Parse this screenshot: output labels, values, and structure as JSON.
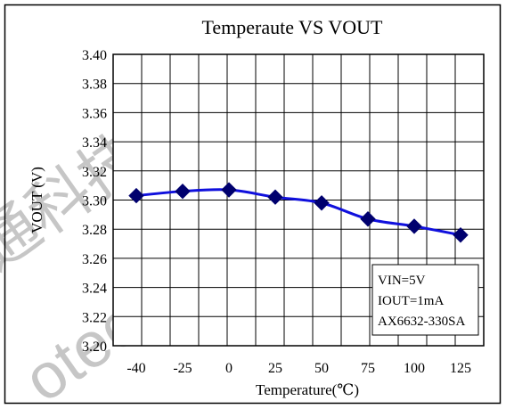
{
  "chart_data": {
    "type": "line",
    "title": "Temperaute VS VOUT",
    "xlabel": "Temperature(℃)",
    "ylabel": "VOUT (V)",
    "categories": [
      "-40",
      "-25",
      "0",
      "25",
      "50",
      "75",
      "100",
      "125"
    ],
    "x_tick_labels": [
      "-40",
      "-25",
      "0",
      "25",
      "50",
      "75",
      "100",
      "125"
    ],
    "y_tick_labels": [
      "3.40",
      "3.38",
      "3.36",
      "3.34",
      "3.32",
      "3.30",
      "3.28",
      "3.26",
      "3.24",
      "3.22",
      "3.20"
    ],
    "ylim": [
      3.2,
      3.4
    ],
    "grid": true,
    "series": [
      {
        "values": [
          3.303,
          3.306,
          3.307,
          3.302,
          3.298,
          3.287,
          3.282,
          3.276
        ]
      }
    ],
    "legend_placement": "bottom-right",
    "annotation_lines": [
      "VIN=5V",
      "IOUT=1mA",
      "AX6632-330SA"
    ],
    "colors": {
      "line": "#1010dd",
      "marker": "#00006e",
      "grid": "#000000",
      "border": "#000000"
    }
  }
}
